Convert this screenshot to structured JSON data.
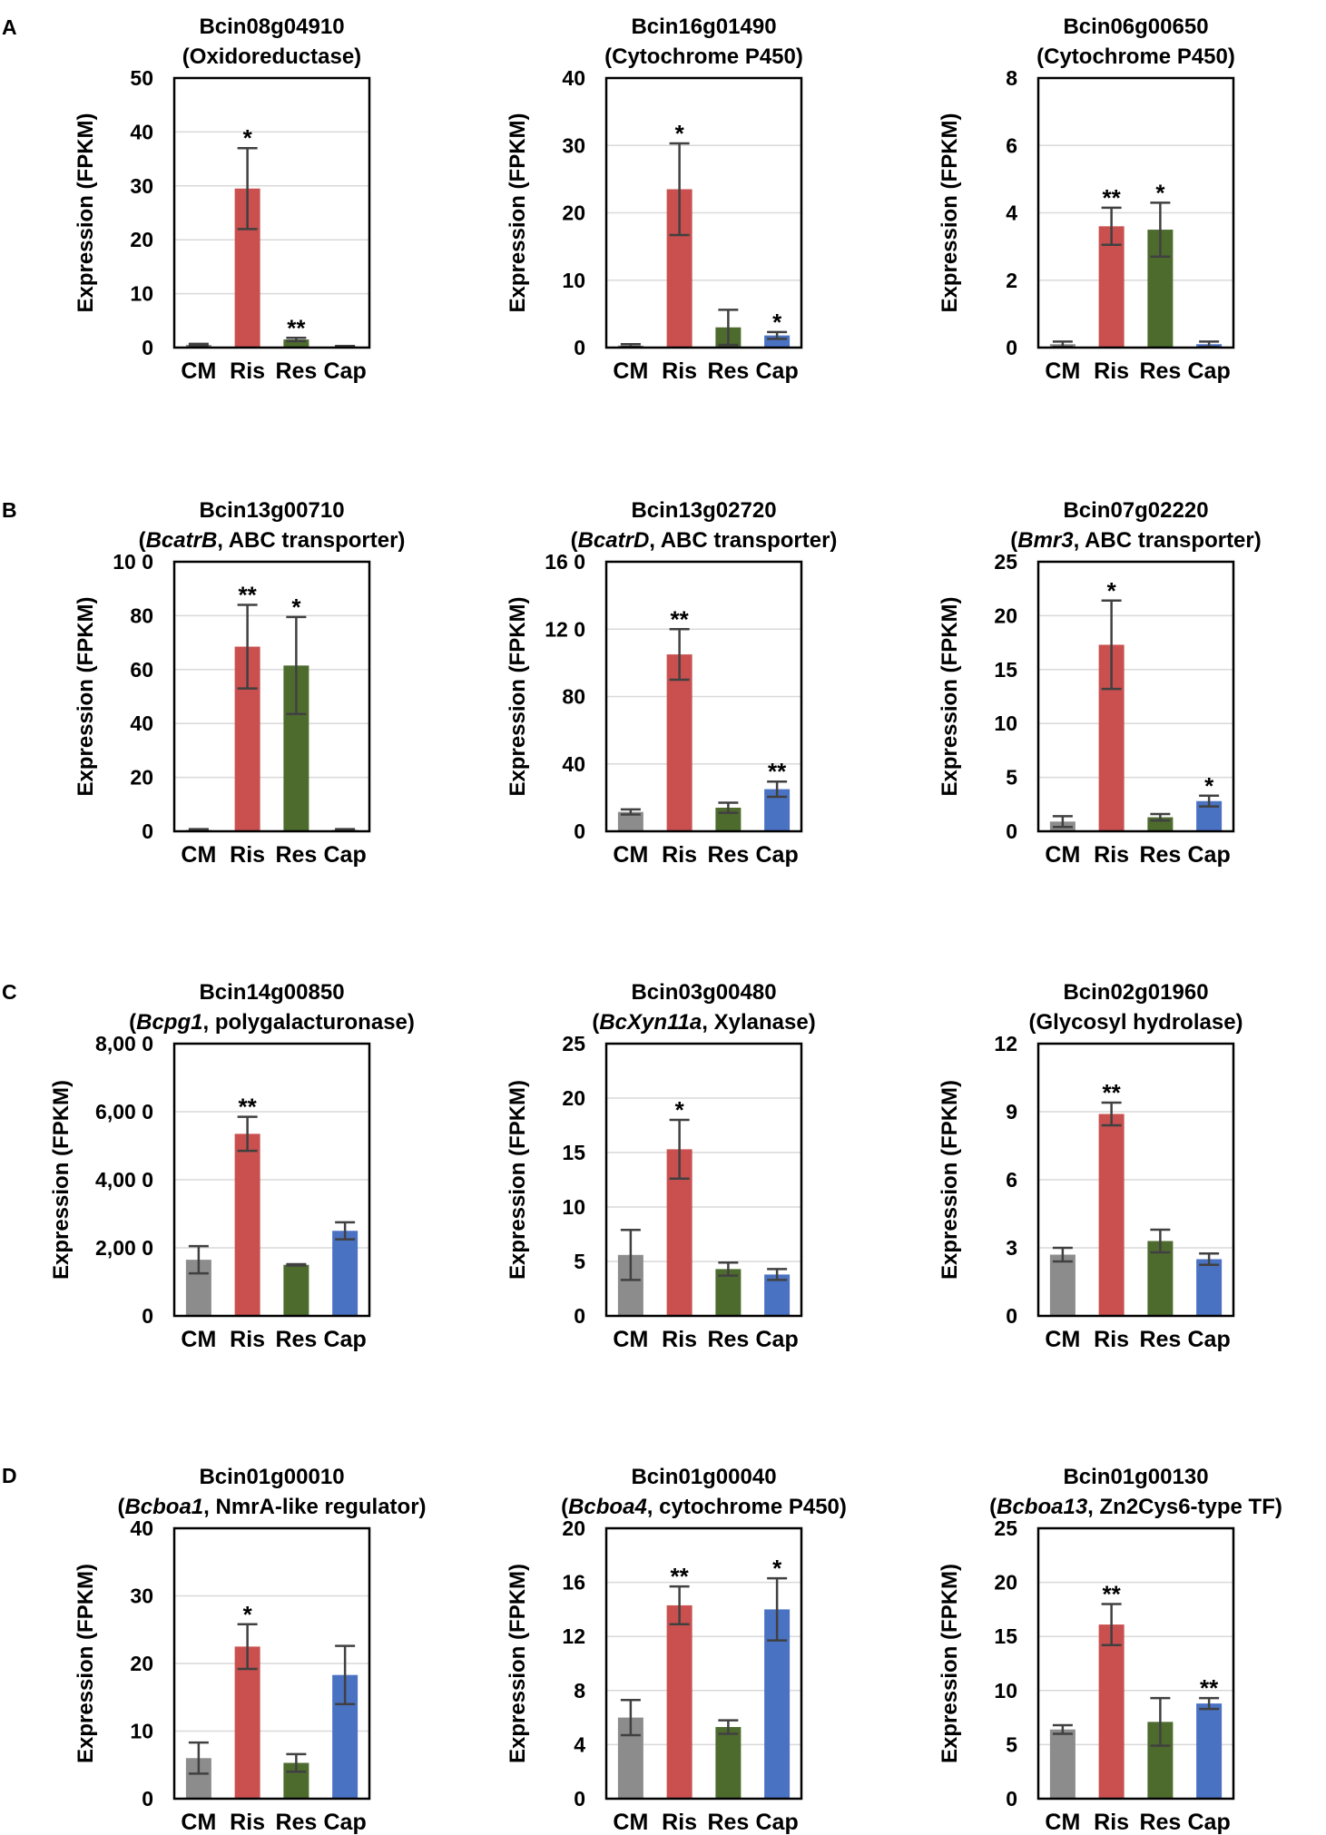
{
  "figure": {
    "panel_labels": [
      "A",
      "B",
      "C",
      "D"
    ],
    "ylabel": "Expression (FPKM)",
    "bar_colors": {
      "CM": "#8c8c8c",
      "Ris": "#c9504f",
      "Res": "#4e6b2e",
      "Cap": "#4a72c2"
    },
    "error_color": "#404040",
    "grid_color": "#d9d9d9"
  },
  "chart_data": [
    {
      "type": "bar",
      "panel": "A",
      "title_line1": "Bcin08g04910",
      "title_line2": [
        {
          "text": "(Oxidoreductase)",
          "italic": false
        }
      ],
      "categories": [
        "CM",
        "Ris",
        "Res",
        "Cap"
      ],
      "values": [
        0.5,
        29.5,
        1.5,
        0.2
      ],
      "errors": [
        0.2,
        7.5,
        0.3,
        0.1
      ],
      "significance": [
        "",
        "*",
        "**",
        ""
      ],
      "ylim": [
        0,
        50
      ],
      "yticks": [
        "0",
        "10",
        "20",
        "30",
        "40",
        "50"
      ],
      "ylabel": "Expression (FPKM)"
    },
    {
      "type": "bar",
      "panel": "A",
      "title_line1": "Bcin16g01490",
      "title_line2": [
        {
          "text": "(Cytochrome P450)",
          "italic": false
        }
      ],
      "categories": [
        "CM",
        "Ris",
        "Res",
        "Cap"
      ],
      "values": [
        0.3,
        23.5,
        3.0,
        1.8
      ],
      "errors": [
        0.2,
        6.8,
        2.6,
        0.5
      ],
      "significance": [
        "",
        "*",
        "",
        "*"
      ],
      "ylim": [
        0,
        40
      ],
      "yticks": [
        "0",
        "10",
        "20",
        "30",
        "40"
      ],
      "ylabel": "Expression (FPKM)"
    },
    {
      "type": "bar",
      "panel": "A",
      "title_line1": "Bcin06g00650",
      "title_line2": [
        {
          "text": "(Cytochrome P450)",
          "italic": false
        }
      ],
      "categories": [
        "CM",
        "Ris",
        "Res",
        "Cap"
      ],
      "values": [
        0.1,
        3.6,
        3.5,
        0.1
      ],
      "errors": [
        0.08,
        0.55,
        0.8,
        0.08
      ],
      "significance": [
        "",
        "**",
        "*",
        ""
      ],
      "ylim": [
        0,
        8
      ],
      "yticks": [
        "0",
        "2",
        "4",
        "6",
        "8"
      ],
      "ylabel": "Expression (FPKM)"
    },
    {
      "type": "bar",
      "panel": "B",
      "title_line1": "Bcin13g00710",
      "title_line2": [
        {
          "text": "(",
          "italic": false
        },
        {
          "text": "BcatrB",
          "italic": true
        },
        {
          "text": ", ABC transporter)",
          "italic": false
        }
      ],
      "categories": [
        "CM",
        "Ris",
        "Res",
        "Cap"
      ],
      "values": [
        0.5,
        68.5,
        61.5,
        0.5
      ],
      "errors": [
        0.3,
        15.5,
        18,
        0.3
      ],
      "significance": [
        "",
        "**",
        "*",
        ""
      ],
      "ylim": [
        0,
        100
      ],
      "yticks": [
        "0",
        "20",
        "40",
        "60",
        "80",
        "10 0"
      ],
      "ylabel": "Expression (FPKM)"
    },
    {
      "type": "bar",
      "panel": "B",
      "title_line1": "Bcin13g02720",
      "title_line2": [
        {
          "text": "(",
          "italic": false
        },
        {
          "text": "BcatrD",
          "italic": true
        },
        {
          "text": ", ABC transporter)",
          "italic": false
        }
      ],
      "categories": [
        "CM",
        "Ris",
        "Res",
        "Cap"
      ],
      "values": [
        11.5,
        105,
        14,
        25
      ],
      "errors": [
        1.5,
        15,
        3,
        4.5
      ],
      "significance": [
        "",
        "**",
        "",
        "**"
      ],
      "ylim": [
        0,
        160
      ],
      "yticks": [
        "0",
        "40",
        "80",
        "12 0",
        "16 0"
      ],
      "ylabel": "Expression (FPKM)"
    },
    {
      "type": "bar",
      "panel": "B",
      "title_line1": "Bcin07g02220",
      "title_line2": [
        {
          "text": "(",
          "italic": false
        },
        {
          "text": "Bmr3",
          "italic": true
        },
        {
          "text": ", ABC transporter)",
          "italic": false
        }
      ],
      "categories": [
        "CM",
        "Ris",
        "Res",
        "Cap"
      ],
      "values": [
        0.9,
        17.3,
        1.3,
        2.8
      ],
      "errors": [
        0.5,
        4.1,
        0.3,
        0.5
      ],
      "significance": [
        "",
        "*",
        "",
        "*"
      ],
      "ylim": [
        0,
        25
      ],
      "yticks": [
        "0",
        "5",
        "10",
        "15",
        "20",
        "25"
      ],
      "ylabel": "Expression (FPKM)"
    },
    {
      "type": "bar",
      "panel": "C",
      "title_line1": "Bcin14g00850",
      "title_line2": [
        {
          "text": "(",
          "italic": false
        },
        {
          "text": "Bcpg1",
          "italic": true
        },
        {
          "text": ", polygalacturonase)",
          "italic": false
        }
      ],
      "categories": [
        "CM",
        "Ris",
        "Res",
        "Cap"
      ],
      "values": [
        1650,
        5350,
        1500,
        2500
      ],
      "errors": [
        400,
        500,
        20,
        250
      ],
      "significance": [
        "",
        "**",
        "",
        ""
      ],
      "ylim": [
        0,
        8000
      ],
      "yticks": [
        "0",
        "2,00 0",
        "4,00 0",
        "6,00 0",
        "8,00 0"
      ],
      "ylabel": "Expression (FPKM)"
    },
    {
      "type": "bar",
      "panel": "C",
      "title_line1": "Bcin03g00480",
      "title_line2": [
        {
          "text": "(",
          "italic": false
        },
        {
          "text": "BcXyn11a",
          "italic": true
        },
        {
          "text": ", Xylanase)",
          "italic": false
        }
      ],
      "categories": [
        "CM",
        "Ris",
        "Res",
        "Cap"
      ],
      "values": [
        5.6,
        15.3,
        4.3,
        3.8
      ],
      "errors": [
        2.3,
        2.7,
        0.6,
        0.5
      ],
      "significance": [
        "",
        "*",
        "",
        ""
      ],
      "ylim": [
        0,
        25
      ],
      "yticks": [
        "0",
        "5",
        "10",
        "15",
        "20",
        "25"
      ],
      "ylabel": "Expression (FPKM)"
    },
    {
      "type": "bar",
      "panel": "C",
      "title_line1": "Bcin02g01960",
      "title_line2": [
        {
          "text": "(Glycosyl hydrolase)",
          "italic": false
        }
      ],
      "categories": [
        "CM",
        "Ris",
        "Res",
        "Cap"
      ],
      "values": [
        2.7,
        8.9,
        3.3,
        2.5
      ],
      "errors": [
        0.3,
        0.5,
        0.5,
        0.25
      ],
      "significance": [
        "",
        "**",
        "",
        ""
      ],
      "ylim": [
        0,
        12
      ],
      "yticks": [
        "0",
        "3",
        "6",
        "9",
        "12"
      ],
      "ylabel": "Expression (FPKM)"
    },
    {
      "type": "bar",
      "panel": "D",
      "title_line1": "Bcin01g00010",
      "title_line2": [
        {
          "text": "(",
          "italic": false
        },
        {
          "text": "Bcboa1",
          "italic": true
        },
        {
          "text": ", NmrA-like regulator)",
          "italic": false
        }
      ],
      "categories": [
        "CM",
        "Ris",
        "Res",
        "Cap"
      ],
      "values": [
        6,
        22.5,
        5.3,
        18.3
      ],
      "errors": [
        2.3,
        3.3,
        1.3,
        4.3
      ],
      "significance": [
        "",
        "*",
        "",
        ""
      ],
      "ylim": [
        0,
        40
      ],
      "yticks": [
        "0",
        "10",
        "20",
        "30",
        "40"
      ],
      "ylabel": "Expression (FPKM)"
    },
    {
      "type": "bar",
      "panel": "D",
      "title_line1": "Bcin01g00040",
      "title_line2": [
        {
          "text": "(",
          "italic": false
        },
        {
          "text": "Bcboa4",
          "italic": true
        },
        {
          "text": ", cytochrome P450)",
          "italic": false
        }
      ],
      "categories": [
        "CM",
        "Ris",
        "Res",
        "Cap"
      ],
      "values": [
        6,
        14.3,
        5.3,
        14
      ],
      "errors": [
        1.3,
        1.4,
        0.5,
        2.3
      ],
      "significance": [
        "",
        "**",
        "",
        "*"
      ],
      "ylim": [
        0,
        20
      ],
      "yticks": [
        "0",
        "4",
        "8",
        "12",
        "16",
        "20"
      ],
      "ylabel": "Expression (FPKM)"
    },
    {
      "type": "bar",
      "panel": "D",
      "title_line1": "Bcin01g00130",
      "title_line2": [
        {
          "text": "(",
          "italic": false
        },
        {
          "text": "Bcboa13",
          "italic": true
        },
        {
          "text": ", Zn2Cys6-type TF)",
          "italic": false
        }
      ],
      "categories": [
        "CM",
        "Ris",
        "Res",
        "Cap"
      ],
      "values": [
        6.4,
        16.1,
        7.1,
        8.8
      ],
      "errors": [
        0.4,
        1.9,
        2.2,
        0.5
      ],
      "significance": [
        "",
        "**",
        "",
        "**"
      ],
      "ylim": [
        0,
        25
      ],
      "yticks": [
        "0",
        "5",
        "10",
        "15",
        "20",
        "25"
      ],
      "ylabel": "Expression (FPKM)"
    }
  ]
}
